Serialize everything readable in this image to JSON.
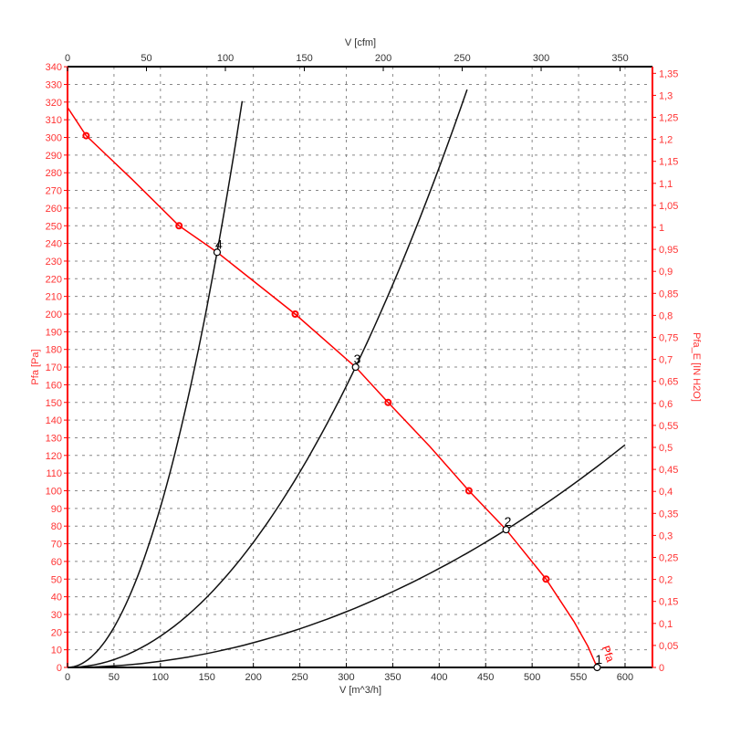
{
  "chart_data": {
    "type": "line",
    "title": "",
    "xlabel": "V [m^3/h]",
    "x2label": "V [cfm]",
    "ylabel": "Pfa [Pa]",
    "y2label": "Pfa_E [IN H2O]",
    "xlim": [
      0,
      630
    ],
    "ylim": [
      0,
      340
    ],
    "x_ticks": [
      0,
      50,
      100,
      150,
      200,
      250,
      300,
      350,
      400,
      450,
      500,
      550,
      600
    ],
    "x2_ticks": [
      0,
      50,
      100,
      150,
      200,
      250,
      300,
      350
    ],
    "y_ticks_step": 10,
    "y2_ticks": [
      "0",
      "0,05",
      "0,1",
      "0,15",
      "0,2",
      "0,25",
      "0,3",
      "0,35",
      "0,4",
      "0,45",
      "0,5",
      "0,55",
      "0,6",
      "0,65",
      "0,7",
      "0,75",
      "0,8",
      "0,85",
      "0,9",
      "0,95",
      "1",
      "1,05",
      "1,1",
      "1,15",
      "1,2",
      "1,25",
      "1,3",
      "1,35"
    ],
    "grid": true,
    "fan_curve": {
      "name": "Pfa",
      "color": "#ff0000",
      "points": [
        [
          0,
          317
        ],
        [
          20,
          301
        ],
        [
          70,
          276
        ],
        [
          120,
          250
        ],
        [
          161,
          235
        ],
        [
          245,
          200
        ],
        [
          310,
          170
        ],
        [
          345,
          150
        ],
        [
          390,
          125
        ],
        [
          432,
          100
        ],
        [
          472,
          78
        ],
        [
          515,
          50
        ],
        [
          545,
          26
        ],
        [
          560,
          12
        ],
        [
          570,
          0
        ]
      ],
      "markers": [
        [
          20,
          301
        ],
        [
          120,
          250
        ],
        [
          245,
          200
        ],
        [
          345,
          150
        ],
        [
          432,
          100
        ],
        [
          515,
          50
        ]
      ]
    },
    "system_curves": [
      {
        "label": "2",
        "k": 0.00035,
        "xmax": 600
      },
      {
        "label": "3",
        "k": 0.001769,
        "xmax": 430
      },
      {
        "label": "4",
        "k": 0.00907,
        "xmax": 188
      }
    ],
    "operating_points": [
      {
        "label": "1",
        "x": 570,
        "y": 0
      },
      {
        "label": "2",
        "x": 472,
        "y": 78
      },
      {
        "label": "3",
        "x": 310,
        "y": 170
      },
      {
        "label": "4",
        "x": 161,
        "y": 235
      }
    ]
  }
}
